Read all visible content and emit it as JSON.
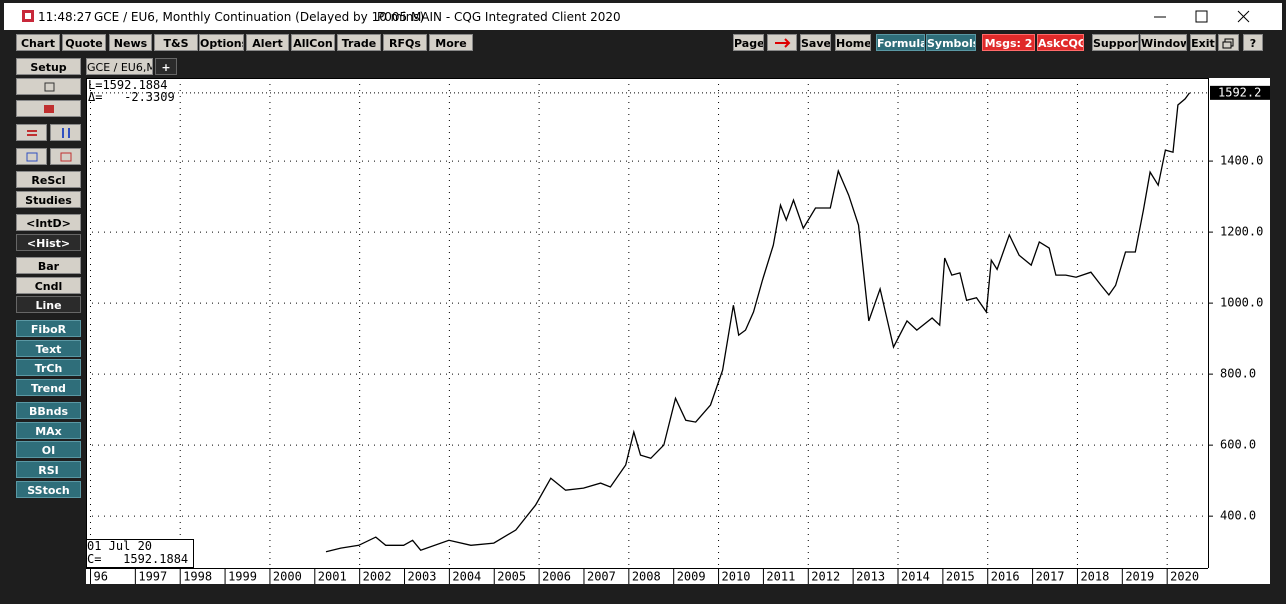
{
  "window": {
    "time": "11:48:27",
    "title": "GCE / EU6, Monthly Continuation (Delayed by 10 mins)",
    "app": "P005 MAIN - CQG Integrated Client 2020"
  },
  "toolbar": {
    "left": [
      "Chart",
      "Quote",
      "News",
      "T&S",
      "Options",
      "Alert",
      "AllCon",
      "Trade",
      "RFQs",
      "More"
    ],
    "right": [
      "Page",
      "Save",
      "Home",
      "Formula",
      "Symbols",
      "Msgs: 2",
      "AskCQG",
      "Support",
      "Window",
      "Exit",
      "?"
    ]
  },
  "sidebar": [
    "Setup",
    "ReScl",
    "Studies",
    "<IntD>",
    "<Hist>",
    "Bar",
    "Cndl",
    "Line",
    "FiboR",
    "Text",
    "TrCh",
    "Trend",
    "BBnds",
    "MAx",
    "OI",
    "RSI",
    "SStoch"
  ],
  "tab": {
    "label": "GCE / EU6,M",
    "add": "+"
  },
  "readout": {
    "last": "L=1592.1884",
    "change": "Δ=   -2.3309",
    "date": "01 Jul 20",
    "close": "C=   1592.1884",
    "price_marker": "1592.2"
  },
  "chart_data": {
    "type": "line",
    "color": "#000000",
    "grid": true,
    "x": [
      2001.25,
      2001.58,
      2001.98,
      2002.36,
      2002.58,
      2002.98,
      2003.18,
      2003.36,
      2003.99,
      2004.48,
      2004.99,
      2005.48,
      2005.92,
      2006.26,
      2006.59,
      2006.99,
      2007.37,
      2007.59,
      2007.93,
      2008.11,
      2008.26,
      2008.49,
      2008.78,
      2009.04,
      2009.27,
      2009.49,
      2009.82,
      2010.09,
      2010.33,
      2010.45,
      2010.6,
      2010.78,
      2010.98,
      2011.22,
      2011.38,
      2011.51,
      2011.67,
      2011.89,
      2012.16,
      2012.49,
      2012.67,
      2012.9,
      2013.12,
      2013.35,
      2013.6,
      2013.9,
      2014.2,
      2014.42,
      2014.76,
      2014.93,
      2015.04,
      2015.2,
      2015.38,
      2015.53,
      2015.75,
      2015.97,
      2016.08,
      2016.21,
      2016.48,
      2016.7,
      2016.97,
      2017.15,
      2017.37,
      2017.52,
      2017.74,
      2017.97,
      2018.3,
      2018.52,
      2018.7,
      2018.85,
      2019.07,
      2019.29,
      2019.47,
      2019.62,
      2019.8,
      2019.96,
      2020.13,
      2020.24,
      2020.4,
      2020.5
    ],
    "values": [
      300,
      310,
      318,
      341,
      318,
      318,
      332,
      304,
      332,
      318,
      324,
      361,
      431,
      507,
      473,
      479,
      493,
      482,
      544,
      637,
      572,
      563,
      600,
      732,
      670,
      665,
      713,
      811,
      994,
      910,
      924,
      975,
      1065,
      1163,
      1276,
      1234,
      1290,
      1211,
      1268,
      1268,
      1372,
      1304,
      1220,
      950,
      1040,
      876,
      950,
      924,
      958,
      938,
      1127,
      1079,
      1085,
      1008,
      1015,
      975,
      1121,
      1095,
      1192,
      1135,
      1107,
      1172,
      1155,
      1079,
      1079,
      1073,
      1087,
      1051,
      1023,
      1050,
      1144,
      1144,
      1262,
      1369,
      1332,
      1431,
      1425,
      1558,
      1575,
      1592.1884
    ],
    "xlim": [
      1995.9,
      2020.91
    ],
    "xticks": [
      {
        "value": 1996,
        "label": "96"
      },
      1997,
      1998,
      1999,
      2000,
      2001,
      2002,
      2003,
      2004,
      2005,
      2006,
      2007,
      2008,
      2009,
      2010,
      2011,
      2012,
      2013,
      2014,
      2015,
      2016,
      2017,
      2018,
      2019,
      2020
    ],
    "ylim": [
      254,
      1634
    ],
    "yticks": [
      {
        "value": 400,
        "label": "400.0"
      },
      {
        "value": 600,
        "label": "600.0"
      },
      {
        "value": 800,
        "label": "800.0"
      },
      {
        "value": 1000,
        "label": "1000.0"
      },
      {
        "value": 1200,
        "label": "1200.0"
      },
      {
        "value": 1400,
        "label": "1400.0"
      }
    ]
  }
}
